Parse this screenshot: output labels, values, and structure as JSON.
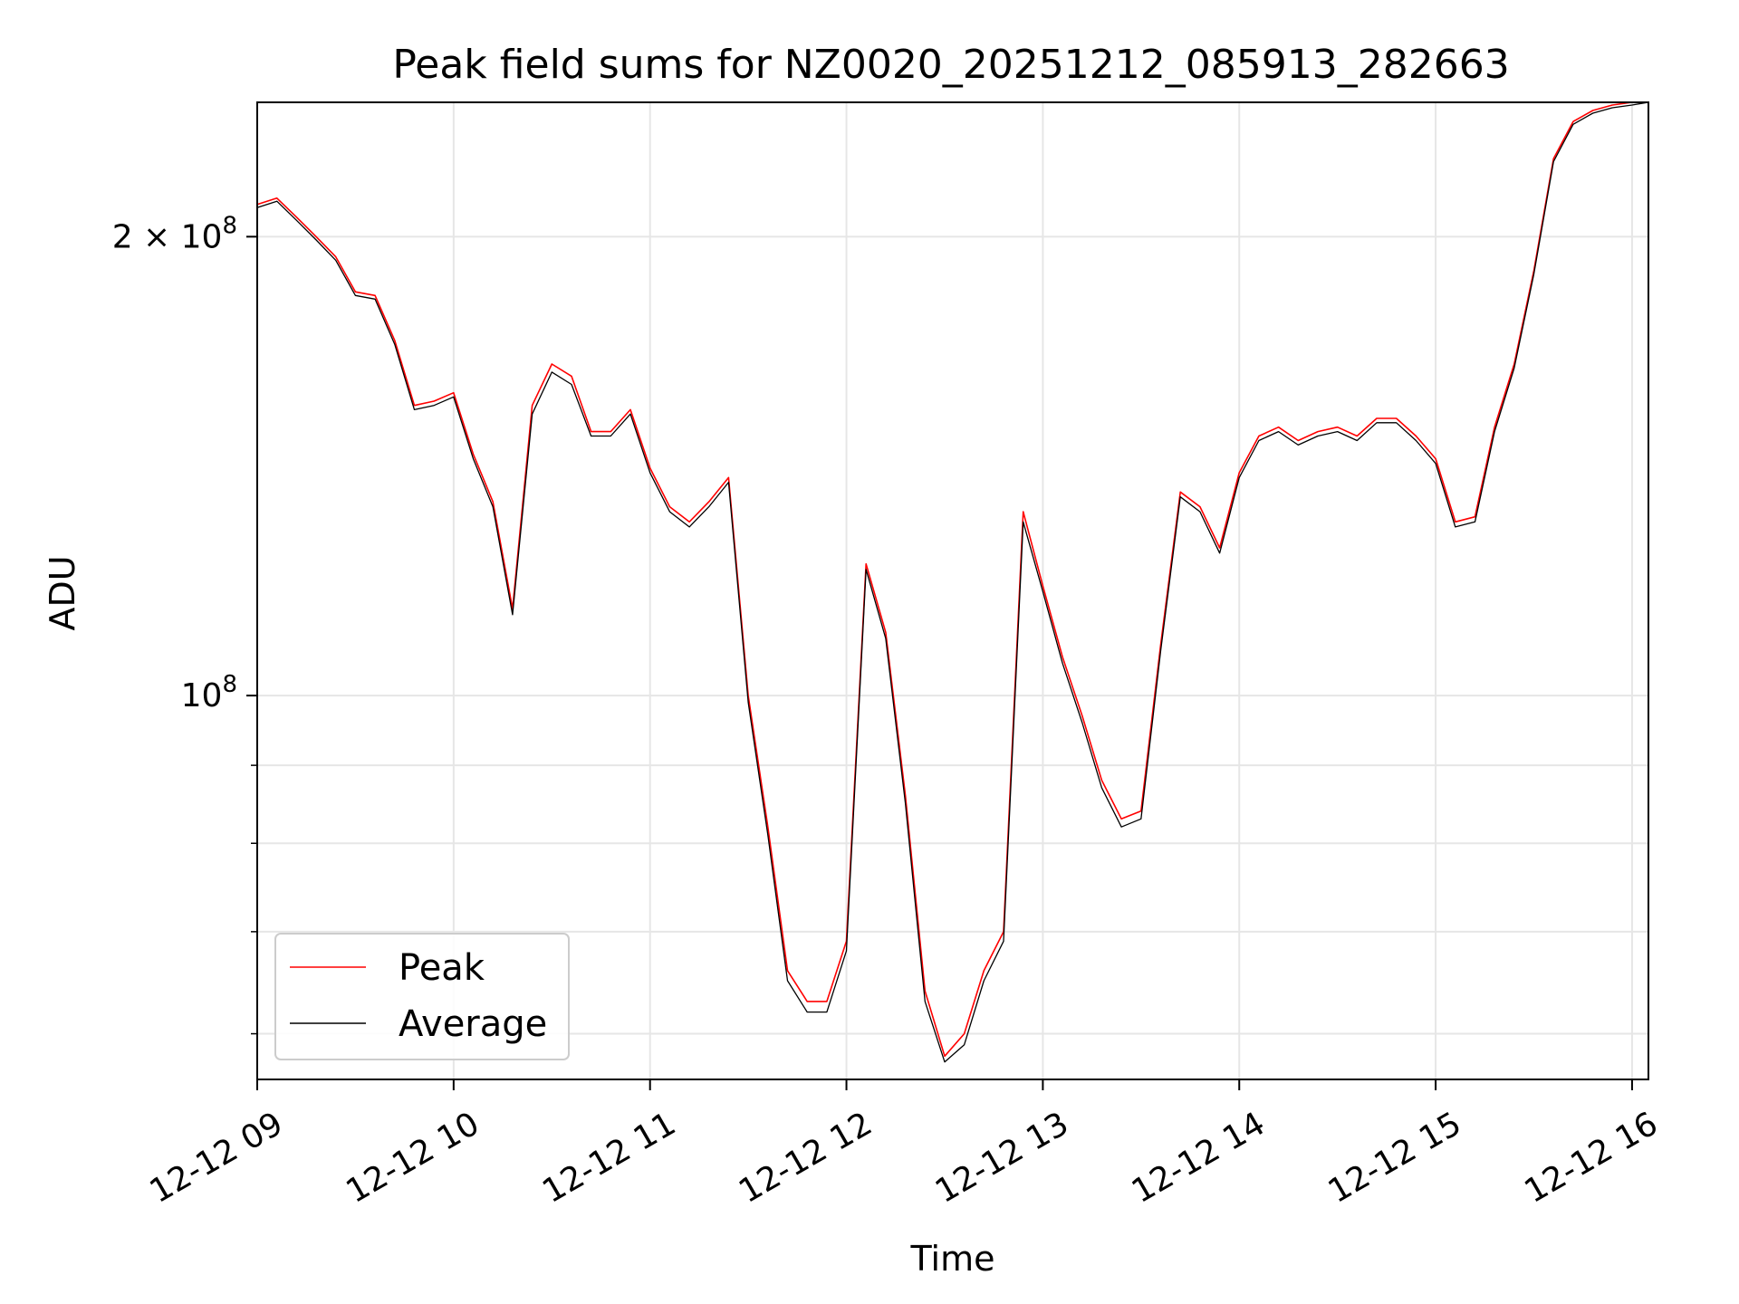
{
  "chart_data": {
    "type": "line",
    "title": "Peak field sums for NZ0020_20251212_085913_282663",
    "xlabel": "Time",
    "ylabel": "ADU",
    "yscale": "log",
    "grid": true,
    "legend_placement": "lower-left",
    "xlim": [
      "2025-12-12 09:00",
      "2025-12-12 16:05"
    ],
    "ylim": [
      56000000,
      245000000
    ],
    "x_ticks": [
      {
        "t": "2025-12-12 09:00",
        "label": "12-12 09"
      },
      {
        "t": "2025-12-12 10:00",
        "label": "12-12 10"
      },
      {
        "t": "2025-12-12 11:00",
        "label": "12-12 11"
      },
      {
        "t": "2025-12-12 12:00",
        "label": "12-12 12"
      },
      {
        "t": "2025-12-12 13:00",
        "label": "12-12 13"
      },
      {
        "t": "2025-12-12 14:00",
        "label": "12-12 14"
      },
      {
        "t": "2025-12-12 15:00",
        "label": "12-12 15"
      },
      {
        "t": "2025-12-12 16:00",
        "label": "12-12 16"
      }
    ],
    "y_major_ticks": [
      {
        "value": 100000000,
        "base": "10",
        "exp": "8"
      },
      {
        "value": 200000000,
        "base": "2 × 10",
        "exp": "8"
      }
    ],
    "y_minor_ticks": [
      60000000,
      70000000,
      80000000,
      90000000
    ],
    "series": [
      {
        "name": "Peak",
        "color": "#ff0000",
        "x": [
          "09:00",
          "09:06",
          "09:12",
          "09:18",
          "09:24",
          "09:30",
          "09:36",
          "09:42",
          "09:48",
          "09:54",
          "10:00",
          "10:06",
          "10:12",
          "10:18",
          "10:24",
          "10:30",
          "10:36",
          "10:42",
          "10:48",
          "10:54",
          "11:00",
          "11:06",
          "11:12",
          "11:18",
          "11:24",
          "11:30",
          "11:36",
          "11:42",
          "11:48",
          "11:54",
          "12:00",
          "12:06",
          "12:12",
          "12:18",
          "12:24",
          "12:30",
          "12:36",
          "12:42",
          "12:48",
          "12:54",
          "13:00",
          "13:06",
          "13:12",
          "13:18",
          "13:24",
          "13:30",
          "13:36",
          "13:42",
          "13:48",
          "13:54",
          "14:00",
          "14:06",
          "14:12",
          "14:18",
          "14:24",
          "14:30",
          "14:36",
          "14:42",
          "14:48",
          "14:54",
          "15:00",
          "15:06",
          "15:12",
          "15:18",
          "15:24",
          "15:30",
          "15:36",
          "15:42",
          "15:48",
          "15:54",
          "16:00",
          "16:05"
        ],
        "values": [
          210000000,
          212000000,
          206000000,
          200000000,
          194000000,
          184000000,
          183000000,
          171000000,
          155000000,
          156000000,
          158000000,
          144000000,
          134000000,
          114000000,
          155000000,
          165000000,
          162000000,
          149000000,
          149000000,
          154000000,
          141000000,
          133000000,
          130000000,
          134000000,
          139000000,
          100000000,
          82000000,
          66000000,
          63000000,
          63000000,
          69000000,
          122000000,
          110000000,
          86000000,
          64000000,
          58000000,
          60000000,
          66000000,
          70000000,
          132000000,
          118000000,
          106000000,
          97000000,
          88000000,
          83000000,
          84000000,
          108000000,
          136000000,
          133000000,
          125000000,
          140000000,
          148000000,
          150000000,
          147000000,
          149000000,
          150000000,
          148000000,
          152000000,
          152000000,
          148000000,
          143000000,
          130000000,
          131000000,
          150000000,
          165000000,
          190000000,
          225000000,
          238000000,
          242000000,
          244000000,
          245000000,
          245000000
        ]
      },
      {
        "name": "Average",
        "color": "#000000",
        "x": [
          "09:00",
          "09:06",
          "09:12",
          "09:18",
          "09:24",
          "09:30",
          "09:36",
          "09:42",
          "09:48",
          "09:54",
          "10:00",
          "10:06",
          "10:12",
          "10:18",
          "10:24",
          "10:30",
          "10:36",
          "10:42",
          "10:48",
          "10:54",
          "11:00",
          "11:06",
          "11:12",
          "11:18",
          "11:24",
          "11:30",
          "11:36",
          "11:42",
          "11:48",
          "11:54",
          "12:00",
          "12:06",
          "12:12",
          "12:18",
          "12:24",
          "12:30",
          "12:36",
          "12:42",
          "12:48",
          "12:54",
          "13:00",
          "13:06",
          "13:12",
          "13:18",
          "13:24",
          "13:30",
          "13:36",
          "13:42",
          "13:48",
          "13:54",
          "14:00",
          "14:06",
          "14:12",
          "14:18",
          "14:24",
          "14:30",
          "14:36",
          "14:42",
          "14:48",
          "14:54",
          "15:00",
          "15:06",
          "15:12",
          "15:18",
          "15:24",
          "15:30",
          "15:36",
          "15:42",
          "15:48",
          "15:54",
          "16:00",
          "16:05"
        ],
        "values": [
          209000000,
          211000000,
          205000000,
          199000000,
          193000000,
          183000000,
          182000000,
          170000000,
          154000000,
          155000000,
          157000000,
          143000000,
          133000000,
          113000000,
          153000000,
          163000000,
          160000000,
          148000000,
          148000000,
          153000000,
          140000000,
          132000000,
          129000000,
          133000000,
          138000000,
          99000000,
          81000000,
          65000000,
          62000000,
          62000000,
          68000000,
          121000000,
          109000000,
          85000000,
          63000000,
          57500000,
          59000000,
          65000000,
          69000000,
          130000000,
          117000000,
          105000000,
          96000000,
          87000000,
          82000000,
          83000000,
          107000000,
          135000000,
          132000000,
          124000000,
          139000000,
          147000000,
          149000000,
          146000000,
          148000000,
          149000000,
          147000000,
          151000000,
          151000000,
          147000000,
          142000000,
          129000000,
          130000000,
          149000000,
          164000000,
          189000000,
          224000000,
          237000000,
          241000000,
          243000000,
          244000000,
          245000000
        ]
      }
    ],
    "legend": [
      {
        "label": "Peak",
        "color": "#ff0000"
      },
      {
        "label": "Average",
        "color": "#000000"
      }
    ]
  }
}
